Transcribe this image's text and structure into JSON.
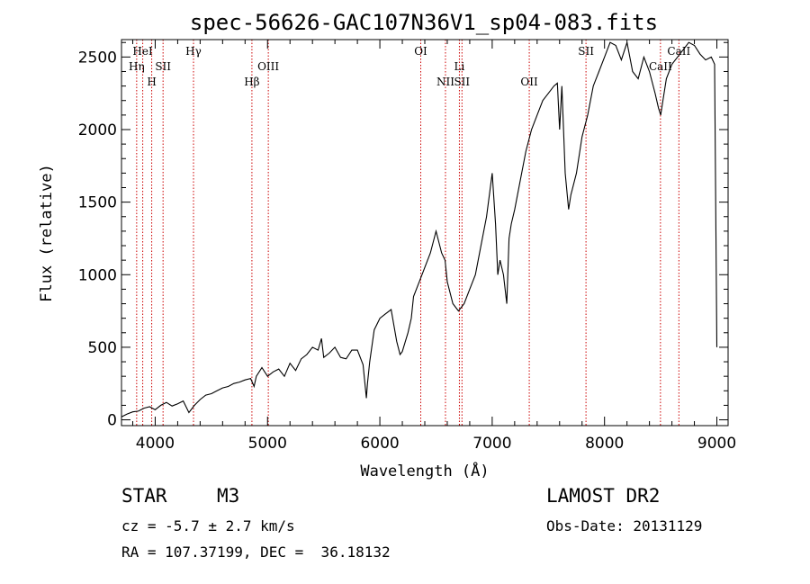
{
  "chart_data": {
    "type": "line",
    "title": "spec-56626-GAC107N36V1_sp04-083.fits",
    "xlabel": "Wavelength (Å)",
    "ylabel": "Flux (relative)",
    "xlim": [
      3700,
      9100
    ],
    "ylim": [
      -40,
      2620
    ],
    "xticks": [
      4000,
      5000,
      6000,
      7000,
      8000,
      9000
    ],
    "yticks": [
      0,
      500,
      1000,
      1500,
      2000,
      2500
    ],
    "grid": false,
    "series": [
      {
        "x": [
          3700,
          3750,
          3800,
          3850,
          3900,
          3950,
          4000,
          4050,
          4100,
          4150,
          4200,
          4250,
          4300,
          4350,
          4400,
          4450,
          4500,
          4550,
          4600,
          4650,
          4700,
          4750,
          4800,
          4850,
          4880,
          4900,
          4950,
          5000,
          5050,
          5100,
          5150,
          5200,
          5250,
          5300,
          5350,
          5400,
          5450,
          5480,
          5500,
          5550,
          5600,
          5650,
          5700,
          5750,
          5800,
          5850,
          5880,
          5890,
          5910,
          5950,
          6000,
          6050,
          6100,
          6150,
          6180,
          6200,
          6250,
          6280,
          6300,
          6350,
          6400,
          6450,
          6500,
          6550,
          6580,
          6600,
          6650,
          6700,
          6750,
          6800,
          6850,
          6900,
          6950,
          7000,
          7030,
          7050,
          7070,
          7100,
          7130,
          7150,
          7170,
          7200,
          7250,
          7300,
          7350,
          7400,
          7450,
          7500,
          7550,
          7580,
          7600,
          7620,
          7650,
          7680,
          7700,
          7750,
          7800,
          7850,
          7900,
          7950,
          8000,
          8050,
          8100,
          8150,
          8200,
          8250,
          8300,
          8350,
          8400,
          8450,
          8480,
          8500,
          8520,
          8550,
          8600,
          8650,
          8700,
          8750,
          8800,
          8850,
          8900,
          8950,
          8980,
          9000
        ],
        "values": [
          20,
          40,
          55,
          60,
          80,
          90,
          70,
          100,
          120,
          95,
          110,
          130,
          50,
          100,
          140,
          170,
          180,
          200,
          220,
          230,
          250,
          260,
          275,
          285,
          230,
          300,
          360,
          300,
          330,
          350,
          300,
          390,
          340,
          420,
          450,
          500,
          480,
          560,
          430,
          460,
          500,
          430,
          420,
          480,
          480,
          380,
          150,
          250,
          400,
          620,
          700,
          730,
          760,
          540,
          450,
          470,
          600,
          700,
          850,
          950,
          1050,
          1150,
          1300,
          1150,
          1100,
          950,
          800,
          750,
          800,
          900,
          1000,
          1200,
          1400,
          1700,
          1350,
          1000,
          1100,
          1000,
          800,
          1250,
          1350,
          1450,
          1650,
          1850,
          2000,
          2100,
          2200,
          2250,
          2300,
          2320,
          2000,
          2300,
          1700,
          1450,
          1550,
          1700,
          1950,
          2100,
          2300,
          2400,
          2500,
          2600,
          2580,
          2480,
          2600,
          2400,
          2350,
          2500,
          2400,
          2250,
          2150,
          2100,
          2200,
          2350,
          2450,
          2500,
          2550,
          2600,
          2580,
          2520,
          2480,
          2500,
          2450,
          500
        ]
      }
    ],
    "annotations": [
      {
        "label": "HeI",
        "x": 3889
      },
      {
        "label": "Hη",
        "x": 3835
      },
      {
        "label": "SII",
        "x": 4070
      },
      {
        "label": "H",
        "x": 3969
      },
      {
        "label": "Hγ",
        "x": 4341
      },
      {
        "label": "OIII",
        "x": 5007
      },
      {
        "label": "Hβ",
        "x": 4861
      },
      {
        "label": "OI",
        "x": 6364
      },
      {
        "label": "Li",
        "x": 6708
      },
      {
        "label": "NII",
        "x": 6584
      },
      {
        "label": "SII",
        "x": 6731
      },
      {
        "label": "OII",
        "x": 7330
      },
      {
        "label": "SII",
        "x": 7835
      },
      {
        "label": "CaII",
        "x": 8498
      },
      {
        "label": "CaII",
        "x": 8662
      }
    ],
    "line_color": "#000000",
    "marker_color": "#cc0000"
  },
  "info": {
    "object_type": "STAR",
    "subclass": "M3",
    "cz": "cz = -5.7 ± 2.7 km/s",
    "coords": "RA = 107.37199, DEC =  36.18132",
    "survey": "LAMOST DR2",
    "obs_date": "Obs-Date: 20131129"
  }
}
